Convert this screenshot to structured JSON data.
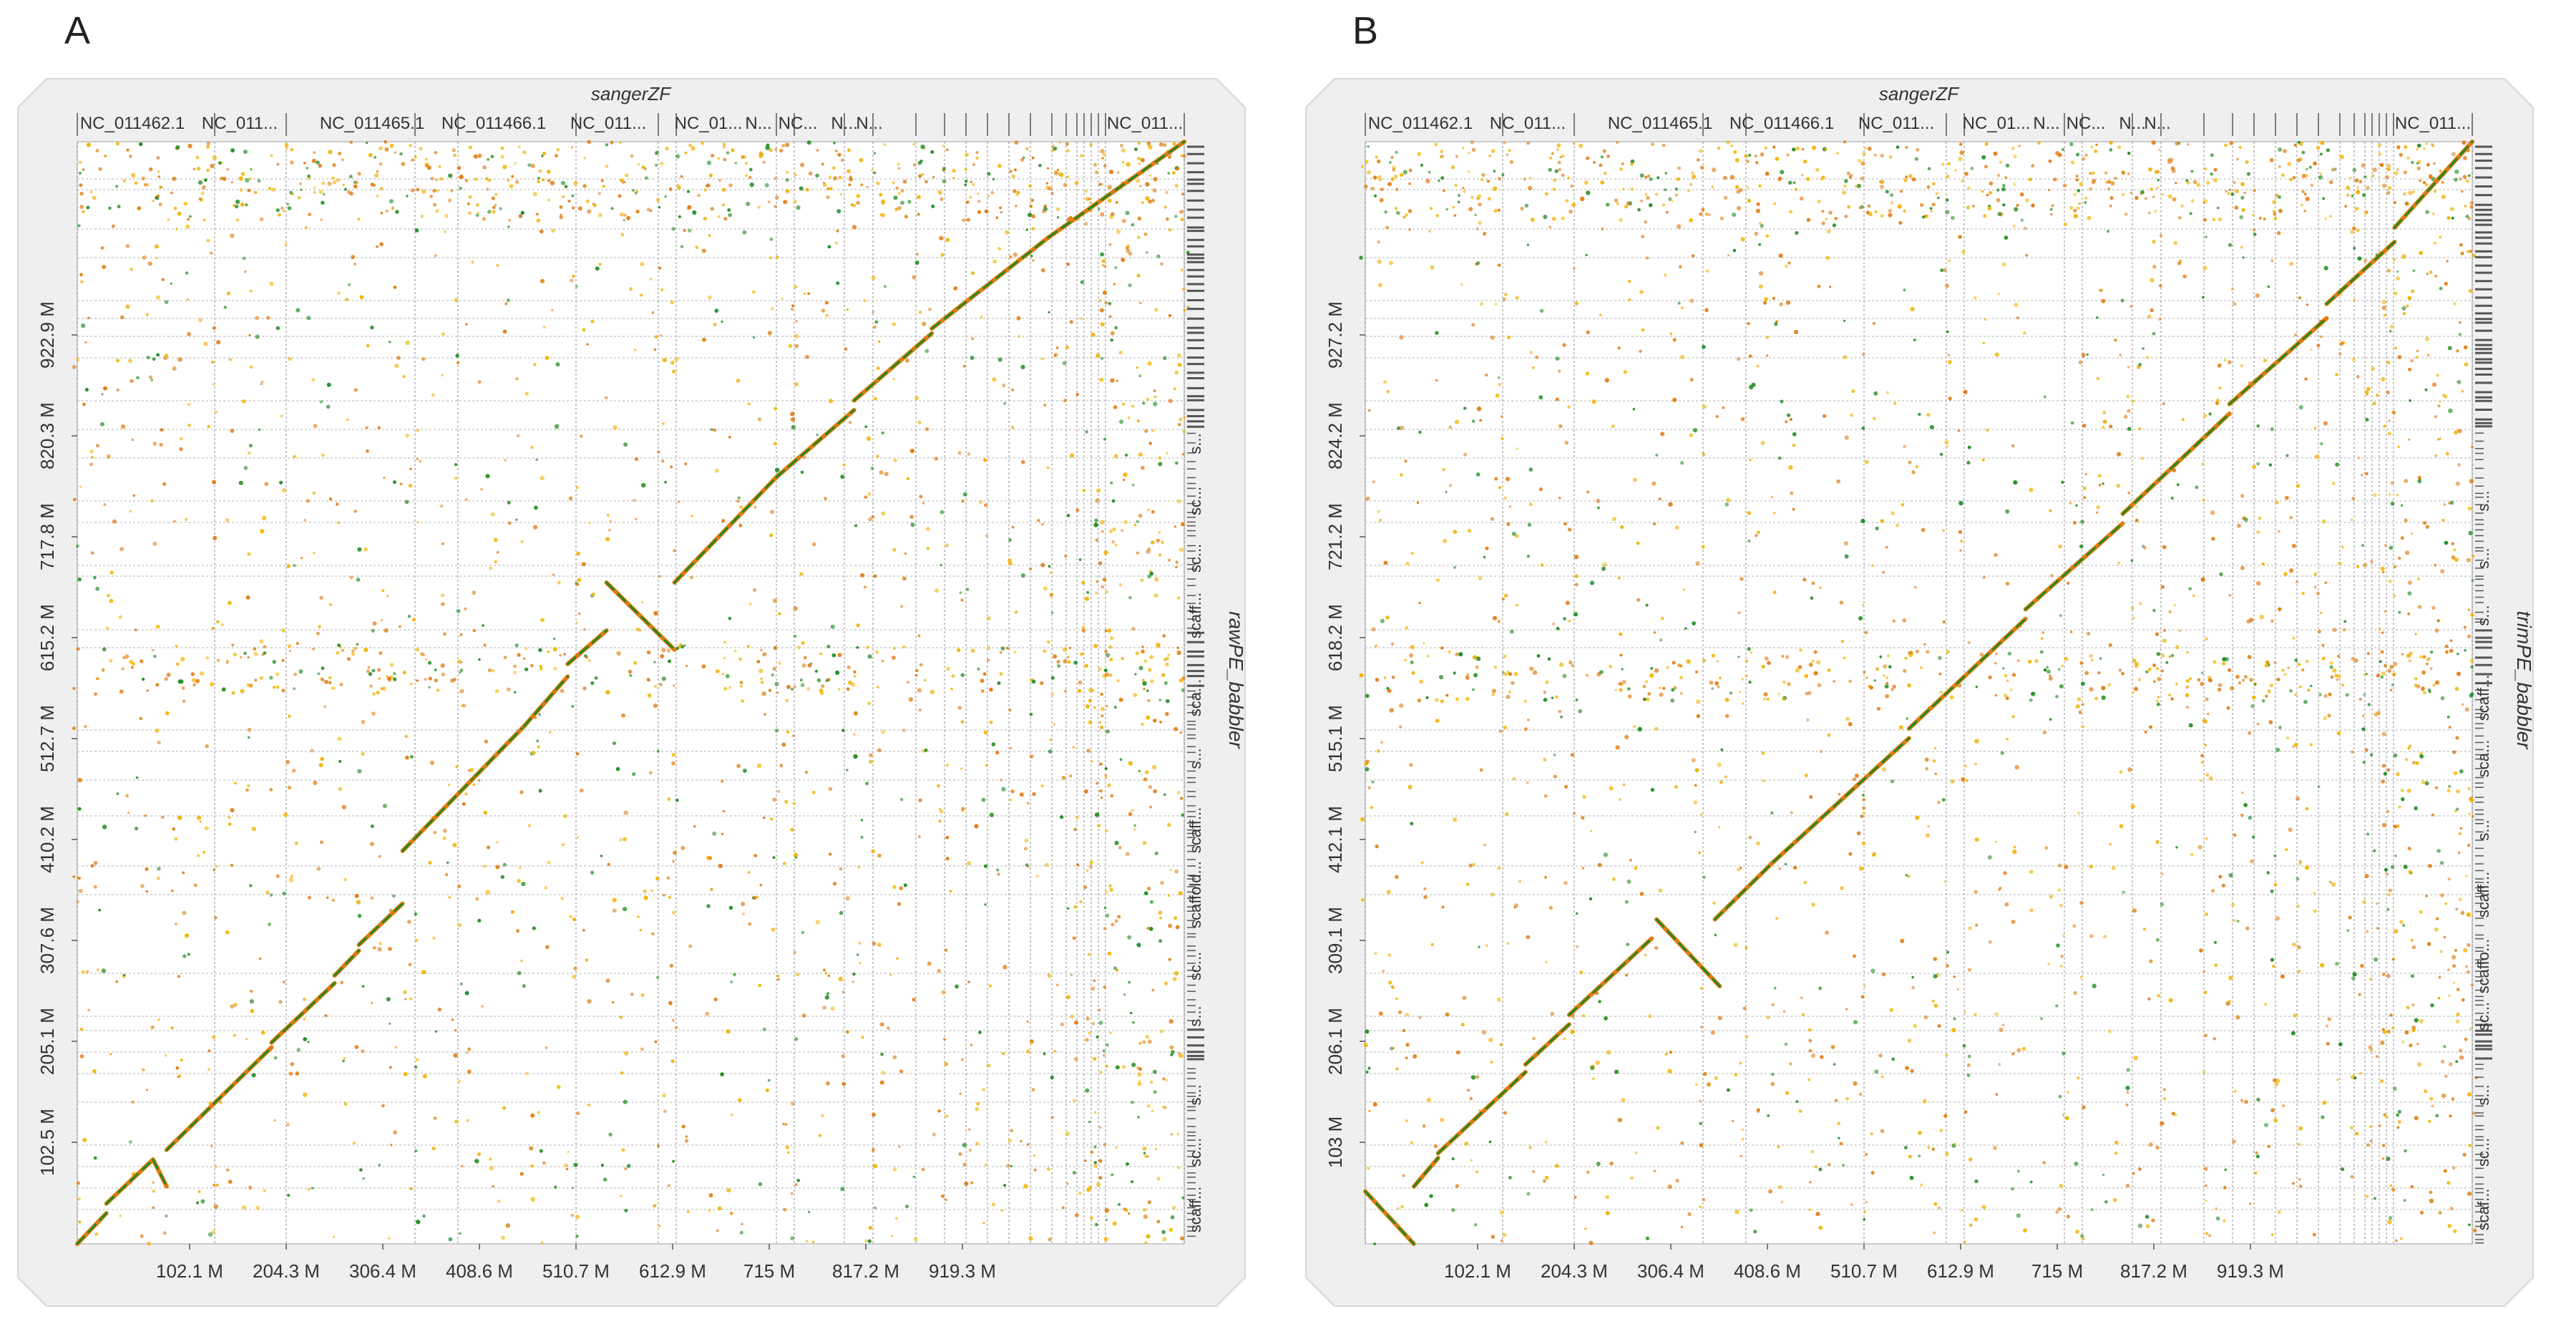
{
  "chart_data": [
    {
      "type": "scatter",
      "panel_label": "A",
      "xlabel": "sangerZF",
      "ylabel": "rawPE_babbler",
      "top_labels": [
        "NC_011462.1",
        "NC_011...",
        "NC_011465.1",
        "NC_011466.1",
        "NC_011...",
        "NC_01...",
        "N...",
        "NC...",
        "N...",
        "N...",
        "NC_011..."
      ],
      "x_ticks": [
        "102.1 M",
        "204.3 M",
        "306.4 M",
        "408.6 M",
        "510.7 M",
        "612.9 M",
        "715 M",
        "817.2 M",
        "919.3 M"
      ],
      "y_ticks": [
        "102.5 M",
        "205.1 M",
        "307.6 M",
        "410.2 M",
        "512.7 M",
        "615.2 M",
        "717.8 M",
        "820.3 M",
        "922.9 M"
      ],
      "right_labels": [
        "scaff...",
        "sc...",
        "s...",
        "s...",
        "sc...",
        "scaffold...",
        "scaff...",
        "s...",
        "sca...",
        "scaff...",
        "sc...",
        "sc...",
        "s..."
      ],
      "xlim": [
        0,
        1140
      ],
      "ylim": [
        0,
        1150
      ],
      "colors": {
        "dense": "#1f8a1f",
        "mid": "#e07b10",
        "light": "#f2b200"
      },
      "segments": [
        {
          "x": [
            0,
            30
          ],
          "y": [
            0,
            32
          ],
          "strand": "+"
        },
        {
          "x": [
            30,
            78
          ],
          "y": [
            42,
            88
          ],
          "strand": "+"
        },
        {
          "x": [
            78,
            92
          ],
          "y": [
            88,
            60
          ],
          "strand": "-"
        },
        {
          "x": [
            92,
            200
          ],
          "y": [
            98,
            205
          ],
          "strand": "+"
        },
        {
          "x": [
            200,
            265
          ],
          "y": [
            210,
            272
          ],
          "strand": "+"
        },
        {
          "x": [
            265,
            290
          ],
          "y": [
            280,
            306
          ],
          "strand": "+"
        },
        {
          "x": [
            290,
            335
          ],
          "y": [
            312,
            355
          ],
          "strand": "+"
        },
        {
          "x": [
            335,
            410
          ],
          "y": [
            410,
            488
          ],
          "strand": "+"
        },
        {
          "x": [
            410,
            460
          ],
          "y": [
            488,
            540
          ],
          "strand": "+"
        },
        {
          "x": [
            460,
            505
          ],
          "y": [
            540,
            592
          ],
          "strand": "+"
        },
        {
          "x": [
            505,
            545
          ],
          "y": [
            605,
            640
          ],
          "strand": "+"
        },
        {
          "x": [
            545,
            615
          ],
          "y": [
            690,
            620
          ],
          "strand": "-"
        },
        {
          "x": [
            615,
            720
          ],
          "y": [
            690,
            800
          ],
          "strand": "+"
        },
        {
          "x": [
            720,
            800
          ],
          "y": [
            800,
            870
          ],
          "strand": "+"
        },
        {
          "x": [
            800,
            880
          ],
          "y": [
            880,
            950
          ],
          "strand": "+"
        },
        {
          "x": [
            880,
            1000
          ],
          "y": [
            955,
            1050
          ],
          "strand": "+"
        },
        {
          "x": [
            1000,
            1140
          ],
          "y": [
            1050,
            1150
          ],
          "strand": "+"
        }
      ]
    },
    {
      "type": "scatter",
      "panel_label": "B",
      "xlabel": "sangerZF",
      "ylabel": "trimPE_babbler",
      "top_labels": [
        "NC_011462.1",
        "NC_011...",
        "NC_011465.1",
        "NC_011466.1",
        "NC_011...",
        "NC_01...",
        "N...",
        "NC...",
        "N...",
        "N...",
        "NC_011..."
      ],
      "x_ticks": [
        "102.1 M",
        "204.3 M",
        "306.4 M",
        "408.6 M",
        "510.7 M",
        "612.9 M",
        "715 M",
        "817.2 M",
        "919.3 M"
      ],
      "y_ticks": [
        "103 M",
        "206.1 M",
        "309.1 M",
        "412.1 M",
        "515.1 M",
        "618.2 M",
        "721.2 M",
        "824.2 M",
        "927.2 M"
      ],
      "right_labels": [
        "scaf...",
        "sc...",
        "s...",
        "sc...",
        "scaffo...",
        "scaff...",
        "s...",
        "sca...",
        "scaff...",
        "s...",
        "s...",
        "s..."
      ],
      "xlim": [
        0,
        1140
      ],
      "ylim": [
        0,
        1155
      ],
      "colors": {
        "dense": "#1f8a1f",
        "mid": "#e07b10",
        "light": "#f2b200"
      },
      "segments": [
        {
          "x": [
            0,
            50
          ],
          "y": [
            55,
            0
          ],
          "strand": "-"
        },
        {
          "x": [
            50,
            75
          ],
          "y": [
            60,
            90
          ],
          "strand": "+"
        },
        {
          "x": [
            75,
            165
          ],
          "y": [
            95,
            180
          ],
          "strand": "+"
        },
        {
          "x": [
            165,
            210
          ],
          "y": [
            188,
            230
          ],
          "strand": "+"
        },
        {
          "x": [
            210,
            295
          ],
          "y": [
            240,
            320
          ],
          "strand": "+"
        },
        {
          "x": [
            300,
            365
          ],
          "y": [
            340,
            270
          ],
          "strand": "-"
        },
        {
          "x": [
            360,
            420
          ],
          "y": [
            340,
            400
          ],
          "strand": "+"
        },
        {
          "x": [
            420,
            560
          ],
          "y": [
            400,
            530
          ],
          "strand": "+"
        },
        {
          "x": [
            560,
            680
          ],
          "y": [
            540,
            655
          ],
          "strand": "+"
        },
        {
          "x": [
            680,
            780
          ],
          "y": [
            665,
            755
          ],
          "strand": "+"
        },
        {
          "x": [
            780,
            890
          ],
          "y": [
            765,
            870
          ],
          "strand": "+"
        },
        {
          "x": [
            890,
            990
          ],
          "y": [
            880,
            970
          ],
          "strand": "+"
        },
        {
          "x": [
            990,
            1060
          ],
          "y": [
            985,
            1050
          ],
          "strand": "+"
        },
        {
          "x": [
            1060,
            1140
          ],
          "y": [
            1065,
            1155
          ],
          "strand": "+"
        }
      ]
    }
  ]
}
